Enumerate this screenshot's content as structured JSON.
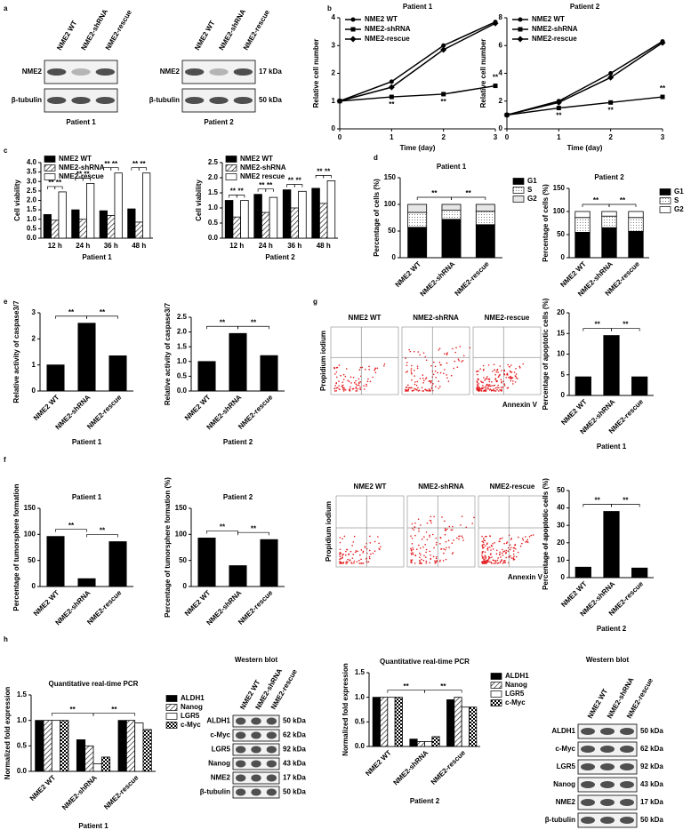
{
  "panel_labels": [
    "a",
    "b",
    "c",
    "d",
    "e",
    "g",
    "f",
    "h"
  ],
  "blots": [
    {
      "columns": [
        "NME2 WT",
        "NME2-shRNA",
        "NME2-rescue"
      ],
      "rows": [
        {
          "label": "NME2"
        },
        {
          "label": "β-tubulin"
        }
      ],
      "caption": "Patient 1"
    },
    {
      "columns": [
        "NME2 WT",
        "NME2-shRNA",
        "NME2-rescue"
      ],
      "rows": [
        {
          "label": "NME2",
          "kda": "17 kDa"
        },
        {
          "label": "β-tubulin",
          "kda": "50 kDa"
        }
      ],
      "caption": "Patient 2"
    },
    {
      "title": "Western blot",
      "columns": [
        "NME2 WT",
        "NME2-shRNA",
        "NME2-rescue"
      ],
      "rows": [
        {
          "label": "ALDH1",
          "kda": "50 kDa"
        },
        {
          "label": "c-Myc",
          "kda": "62 kDa"
        },
        {
          "label": "LGR5",
          "kda": "92 kDa"
        },
        {
          "label": "Nanog",
          "kda": "43 kDa"
        },
        {
          "label": "NME2",
          "kda": "17 kDa"
        },
        {
          "label": "β-tubulin",
          "kda": "50 kDa"
        }
      ]
    },
    {
      "title": "Western blot",
      "columns": [
        "NME2 WT",
        "NME2-shRNA",
        "NME2-rescue"
      ],
      "rows": [
        {
          "label": "ALDH1",
          "kda": "50 kDa"
        },
        {
          "label": "c-Myc",
          "kda": "62 kDa"
        },
        {
          "label": "LGR5",
          "kda": "92 kDa"
        },
        {
          "label": "Nanog",
          "kda": "43 kDa"
        },
        {
          "label": "NME2",
          "kda": "17 kDa"
        },
        {
          "label": "β-tubulin",
          "kda": "50 kDa"
        }
      ]
    }
  ],
  "flow": [
    {
      "columns": [
        "NME2 WT",
        "NME2-shRNA",
        "NME2-rescue"
      ],
      "ylabel": "Propidium iodium",
      "xlabel": "Annexin V"
    },
    {
      "columns": [
        "NME2 WT",
        "NME2-shRNA",
        "NME2-rescue"
      ],
      "ylabel": "Propidium iodium",
      "xlabel": "Annexin V"
    }
  ],
  "chart_data": [
    {
      "type": "line",
      "title": "Patient 1",
      "xlabel": "Time (day)",
      "ylabel": "Relative cell number",
      "x": [
        0,
        1,
        2,
        3
      ],
      "xlim": [
        0,
        3
      ],
      "xticks": [
        0,
        1,
        2,
        3
      ],
      "ylim": [
        0,
        4
      ],
      "yticks": [
        0,
        1,
        2,
        3,
        4
      ],
      "legend": "upper left",
      "series": [
        {
          "name": "NME2 WT",
          "color": "#000000",
          "marker": "circle",
          "values": [
            1,
            1.7,
            3.0,
            3.85
          ]
        },
        {
          "name": "NME2-shRNA",
          "color": "#000000",
          "marker": "square",
          "values": [
            1,
            1.15,
            1.25,
            1.55
          ]
        },
        {
          "name": "NME2-rescue",
          "color": "#000000",
          "marker": "diamond",
          "values": [
            1,
            1.5,
            2.85,
            3.8
          ]
        }
      ],
      "annotations": [
        "**",
        "**",
        "**"
      ]
    },
    {
      "type": "line",
      "title": "Patient 2",
      "xlabel": "Time (day)",
      "ylabel": "Relative cell number",
      "x": [
        0,
        1,
        2,
        3
      ],
      "xlim": [
        0,
        3
      ],
      "xticks": [
        0,
        1,
        2,
        3
      ],
      "ylim": [
        0,
        8
      ],
      "yticks": [
        0,
        2,
        4,
        6,
        8
      ],
      "legend": "upper left",
      "series": [
        {
          "name": "NME2 WT",
          "color": "#000000",
          "marker": "circle",
          "values": [
            1,
            2.0,
            4.0,
            6.3
          ]
        },
        {
          "name": "NME2-shRNA",
          "color": "#000000",
          "marker": "square",
          "values": [
            1,
            1.5,
            1.9,
            2.3
          ]
        },
        {
          "name": "NME2-rescue",
          "color": "#000000",
          "marker": "diamond",
          "values": [
            1,
            1.9,
            3.7,
            6.2
          ]
        }
      ],
      "annotations": [
        "**",
        "**",
        "**"
      ]
    },
    {
      "type": "grouped",
      "xlabel": "Patient 1",
      "ylabel": "Cell viability",
      "categories": [
        "12 h",
        "24 h",
        "36 h",
        "48 h"
      ],
      "ylim": [
        0,
        4
      ],
      "yticks": [
        {
          "value": 0,
          "label": "0.0"
        },
        0.5,
        {
          "value": 1,
          "label": "1.0"
        },
        1.5,
        {
          "value": 2,
          "label": "2.0"
        },
        2.5,
        {
          "value": 3,
          "label": "3.0"
        },
        3.5,
        {
          "value": 4,
          "label": "4.0"
        }
      ],
      "legend": "upper left",
      "series": [
        {
          "name": "NME2 WT",
          "color": "#000000",
          "pattern": "solid",
          "values": [
            1.25,
            1.5,
            1.45,
            1.55
          ]
        },
        {
          "name": "NME2-shRNA",
          "color": "#000000",
          "pattern": "diagonal",
          "values": [
            0.95,
            1.0,
            1.2,
            0.85
          ]
        },
        {
          "name": "NME2-rescue",
          "color": "#ffffff",
          "pattern": "none",
          "values": [
            2.45,
            2.9,
            3.45,
            3.45
          ]
        }
      ],
      "annotations": [
        "**",
        "**",
        "**",
        "**",
        "**",
        "**",
        "**",
        "**"
      ]
    },
    {
      "type": "grouped",
      "xlabel": "Patient 2",
      "ylabel": "Cell viability",
      "categories": [
        "12 h",
        "24 h",
        "36 h",
        "48 h"
      ],
      "ylim": [
        0,
        2.5
      ],
      "yticks": [
        {
          "value": 0,
          "label": "0.0"
        },
        0.5,
        {
          "value": 1,
          "label": "1.0"
        },
        1.5,
        {
          "value": 2,
          "label": "2.0"
        },
        2.5
      ],
      "legend": "upper left",
      "series": [
        {
          "name": "NME2 WT",
          "color": "#000000",
          "pattern": "solid",
          "values": [
            1.25,
            1.45,
            1.6,
            1.65
          ]
        },
        {
          "name": "NME2-shRNA",
          "color": "#000000",
          "pattern": "diagonal",
          "values": [
            0.7,
            0.85,
            1.0,
            1.15
          ]
        },
        {
          "name": "NME2 rescue",
          "color": "#ffffff",
          "pattern": "none",
          "values": [
            1.25,
            1.35,
            1.55,
            1.9
          ]
        }
      ],
      "annotations": [
        "**",
        "**",
        "**",
        "**",
        "**",
        "**",
        "**",
        "**"
      ]
    },
    {
      "type": "stacked",
      "title": "Patient 1",
      "ylabel": "Percentage of cells (%)",
      "categories": [
        "NME2 WT",
        "NME2-shRNA",
        "NME2-rescue"
      ],
      "ylim": [
        0,
        150
      ],
      "yticks": [
        0,
        50,
        100,
        150
      ],
      "legend": "right",
      "series": [
        {
          "name": "G1",
          "color": "#000000",
          "pattern": "solid",
          "values": [
            57,
            72,
            62
          ]
        },
        {
          "name": "S",
          "color": "#ffffff",
          "pattern": "dotted",
          "values": [
            28,
            17,
            25
          ]
        },
        {
          "name": "G2",
          "color": "#e6e6e6",
          "pattern": "none",
          "values": [
            15,
            11,
            13
          ]
        }
      ],
      "annotations": [
        "**",
        "**"
      ]
    },
    {
      "type": "stacked",
      "title": "Patient 2",
      "ylabel": "Percentage of cells (%)",
      "categories": [
        "NME2 WT",
        "NME2-shRNA",
        "NME2-rescue"
      ],
      "ylim": [
        0,
        150
      ],
      "yticks": [
        0,
        50,
        100,
        150
      ],
      "legend": "right",
      "series": [
        {
          "name": "G1",
          "color": "#000000",
          "pattern": "solid",
          "values": [
            55,
            65,
            57
          ]
        },
        {
          "name": "S",
          "color": "#ffffff",
          "pattern": "dotted",
          "values": [
            32,
            25,
            30
          ]
        },
        {
          "name": "G2",
          "color": "#ffffff",
          "pattern": "none",
          "values": [
            13,
            10,
            13
          ]
        }
      ],
      "annotations": [
        "**",
        "**"
      ]
    },
    {
      "type": "bar",
      "xlabel": "Patient 1",
      "ylabel": "Relative activity of caspase3/7",
      "categories": [
        "NME2 WT",
        "NME2-shRNA",
        "NME2-rescue"
      ],
      "ylim": [
        0,
        3
      ],
      "yticks": [
        0,
        1,
        2,
        3
      ],
      "color": "#000000",
      "values": [
        1.0,
        2.6,
        1.35
      ],
      "annotations": [
        "**",
        "**"
      ]
    },
    {
      "type": "bar",
      "xlabel": "Patient 2",
      "ylabel": "Relative activity of caspase3/7",
      "categories": [
        "NME2 WT",
        "NME2-shRNA",
        "NME2-rescue"
      ],
      "ylim": [
        0,
        2.5
      ],
      "yticks": [
        {
          "value": 0,
          "label": "0.0"
        },
        0.5,
        {
          "value": 1,
          "label": "1.0"
        },
        1.5,
        {
          "value": 2,
          "label": "2.0"
        },
        2.5
      ],
      "color": "#000000",
      "values": [
        1.0,
        1.95,
        1.2
      ],
      "annotations": [
        "**",
        "**"
      ]
    },
    {
      "type": "bar",
      "xlabel": "Patient 1",
      "ylabel": "Percentage of apoptotic cells (%)",
      "categories": [
        "NME2 WT",
        "NME2-shRNA",
        "NME2-rescue"
      ],
      "ylim": [
        0,
        20
      ],
      "yticks": [
        0,
        5,
        10,
        15,
        20
      ],
      "color": "#000000",
      "values": [
        4.5,
        14.5,
        4.5
      ],
      "annotations": [
        "**",
        "**"
      ]
    },
    {
      "type": "bar",
      "title": "Patient 1",
      "ylabel": "Percentage of tumorsphere formation",
      "categories": [
        "NME2 WT",
        "NME2-shRNA",
        "NME2-rescue"
      ],
      "ylim": [
        0,
        150
      ],
      "yticks": [
        0,
        50,
        100,
        150
      ],
      "color": "#000000",
      "values": [
        96,
        15,
        86
      ],
      "annotations": [
        "**",
        "**"
      ]
    },
    {
      "type": "bar",
      "title": "Patient 2",
      "ylabel": "Percentage of tumorsphere formation (%)",
      "categories": [
        "NME2 WT",
        "NME2-shRNA",
        "NME2-rescue"
      ],
      "ylim": [
        0,
        150
      ],
      "yticks": [
        0,
        50,
        100,
        150
      ],
      "color": "#000000",
      "values": [
        93,
        40,
        90
      ],
      "annotations": [
        "**",
        "**"
      ]
    },
    {
      "type": "bar",
      "xlabel": "Patient 2",
      "ylabel": "Percentage of apoptotic cells (%)",
      "categories": [
        "NME2 WT",
        "NME2-shRNA",
        "NME2-rescue"
      ],
      "ylim": [
        0,
        50
      ],
      "yticks": [
        0,
        10,
        20,
        30,
        40,
        50
      ],
      "color": "#000000",
      "values": [
        6,
        38,
        5.5
      ],
      "annotations": [
        "**",
        "**"
      ]
    },
    {
      "type": "grouped",
      "title": "Quantitative real-time PCR",
      "xlabel": "Patient 1",
      "ylabel": "Normalized fold expression",
      "categories": [
        "NME2 WT",
        "NME2-shRNA",
        "NME2-rescue"
      ],
      "ylim": [
        0,
        1.5
      ],
      "yticks": [
        {
          "value": 0,
          "label": "0.0"
        },
        0.5,
        {
          "value": 1,
          "label": "1.0"
        },
        1.5
      ],
      "legend": "right",
      "series": [
        {
          "name": "ALDH1",
          "color": "#000000",
          "pattern": "solid",
          "values": [
            1.0,
            0.62,
            1.0
          ]
        },
        {
          "name": "Nanog",
          "color": "#000000",
          "pattern": "diagonal",
          "values": [
            1.0,
            0.5,
            1.0
          ]
        },
        {
          "name": "LGR5",
          "color": "#ffffff",
          "pattern": "none",
          "values": [
            1.0,
            0.15,
            0.95
          ]
        },
        {
          "name": "c-Myc",
          "color": "#000000",
          "pattern": "checker",
          "values": [
            1.0,
            0.28,
            0.82
          ]
        }
      ],
      "annotations": [
        "**",
        "**"
      ]
    },
    {
      "type": "grouped",
      "title": "Quantitative real-time PCR",
      "xlabel": "Patient 2",
      "ylabel": "Normalized fold expression",
      "categories": [
        "NME2 WT",
        "NME2-shRNA",
        "NME2-rescue"
      ],
      "ylim": [
        0,
        1.5
      ],
      "yticks": [
        {
          "value": 0,
          "label": "0.0"
        },
        0.5,
        {
          "value": 1,
          "label": "1.0"
        },
        1.5
      ],
      "legend": "right",
      "series": [
        {
          "name": "ALDH1",
          "color": "#000000",
          "pattern": "solid",
          "values": [
            1.0,
            0.15,
            0.95
          ]
        },
        {
          "name": "Nanog",
          "color": "#000000",
          "pattern": "diagonal",
          "values": [
            1.0,
            0.1,
            1.0
          ]
        },
        {
          "name": "LGR5",
          "color": "#ffffff",
          "pattern": "none",
          "values": [
            1.0,
            0.1,
            0.8
          ]
        },
        {
          "name": "c-Myc",
          "color": "#000000",
          "pattern": "checker",
          "values": [
            1.0,
            0.2,
            0.8
          ]
        }
      ],
      "annotations": [
        "**",
        "**"
      ]
    }
  ]
}
